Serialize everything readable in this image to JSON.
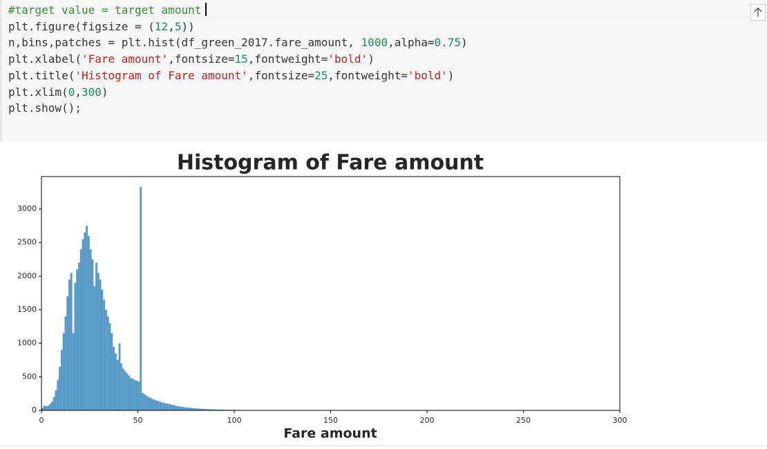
{
  "code": {
    "lines": [
      [
        "#target value = target amount"
      ],
      [
        "plt.figure(figsize = (",
        "12",
        ",",
        "5",
        "))"
      ],
      [
        "n,bins,patches = plt.hist(df_green_2017.fare_amount, ",
        "1000",
        ",alpha=",
        "0.75",
        ")"
      ],
      [
        "plt.xlabel(",
        "'Fare amount'",
        ",fontsize=",
        "15",
        ",fontweight=",
        "'bold'",
        ")"
      ],
      [
        "plt.title(",
        "'Histogram of Fare amount'",
        ",fontsize=",
        "25",
        ",fontweight=",
        "'bold'",
        ")"
      ],
      [
        "plt.xlim(",
        "0",
        ",",
        "300",
        ")"
      ],
      [
        "plt.show();"
      ]
    ]
  },
  "chart_data": {
    "type": "histogram",
    "title": "Histogram of Fare amount",
    "x_label": "Fare amount",
    "color": "#1f77b4",
    "alpha": 0.75,
    "bins": [
      0,
      1,
      2,
      3,
      4,
      5,
      6,
      7,
      8,
      9,
      10,
      11,
      12,
      13,
      14,
      15,
      16,
      17,
      18,
      19,
      20,
      21,
      22,
      23,
      24,
      25,
      26,
      27,
      28,
      29,
      30,
      31,
      32,
      33,
      34,
      35,
      36,
      37,
      38,
      39,
      40,
      41,
      42,
      43,
      44,
      45,
      46,
      47,
      48,
      49,
      50,
      51,
      52,
      53,
      54,
      55,
      56,
      57,
      58,
      59,
      60,
      61,
      62,
      63,
      64,
      65,
      66,
      67,
      68,
      69,
      70,
      71,
      72,
      73,
      74,
      75,
      76,
      77,
      78,
      79,
      80,
      81,
      82,
      83,
      84,
      85,
      86,
      87,
      88,
      89,
      90,
      91,
      92,
      93,
      94,
      95,
      96,
      97,
      98,
      99,
      100,
      101,
      102,
      103,
      104,
      105,
      106,
      107,
      108,
      109,
      110,
      111,
      112,
      113,
      114,
      115,
      116,
      117,
      118,
      119,
      120
    ],
    "values": [
      40,
      70,
      60,
      70,
      90,
      130,
      200,
      300,
      450,
      650,
      900,
      1150,
      1400,
      1700,
      1950,
      2050,
      1150,
      1900,
      2100,
      2200,
      2400,
      2550,
      2650,
      2750,
      2600,
      2400,
      2250,
      1850,
      2200,
      2050,
      1950,
      1800,
      1650,
      1500,
      1400,
      1300,
      1150,
      950,
      850,
      750,
      1000,
      700,
      620,
      580,
      550,
      520,
      480,
      470,
      450,
      440,
      430,
      3330,
      260,
      240,
      220,
      200,
      190,
      170,
      160,
      150,
      140,
      130,
      120,
      115,
      105,
      100,
      95,
      85,
      80,
      70,
      65,
      60,
      55,
      50,
      45,
      42,
      40,
      37,
      34,
      31,
      29,
      27,
      25,
      23,
      21,
      20,
      18,
      17,
      16,
      15,
      14,
      13,
      12,
      11,
      10,
      10,
      9,
      9,
      8,
      8,
      7,
      7,
      6,
      6,
      6,
      5,
      5,
      5,
      4,
      4,
      4,
      4,
      3,
      3,
      3,
      3,
      3,
      2,
      2,
      2
    ],
    "xlim": [
      0,
      300
    ],
    "xticks": [
      0,
      50,
      100,
      150,
      200,
      250,
      300
    ],
    "ylim": [
      0,
      3484
    ],
    "yticks": [
      0,
      500,
      1000,
      1500,
      2000,
      2500,
      3000
    ]
  }
}
